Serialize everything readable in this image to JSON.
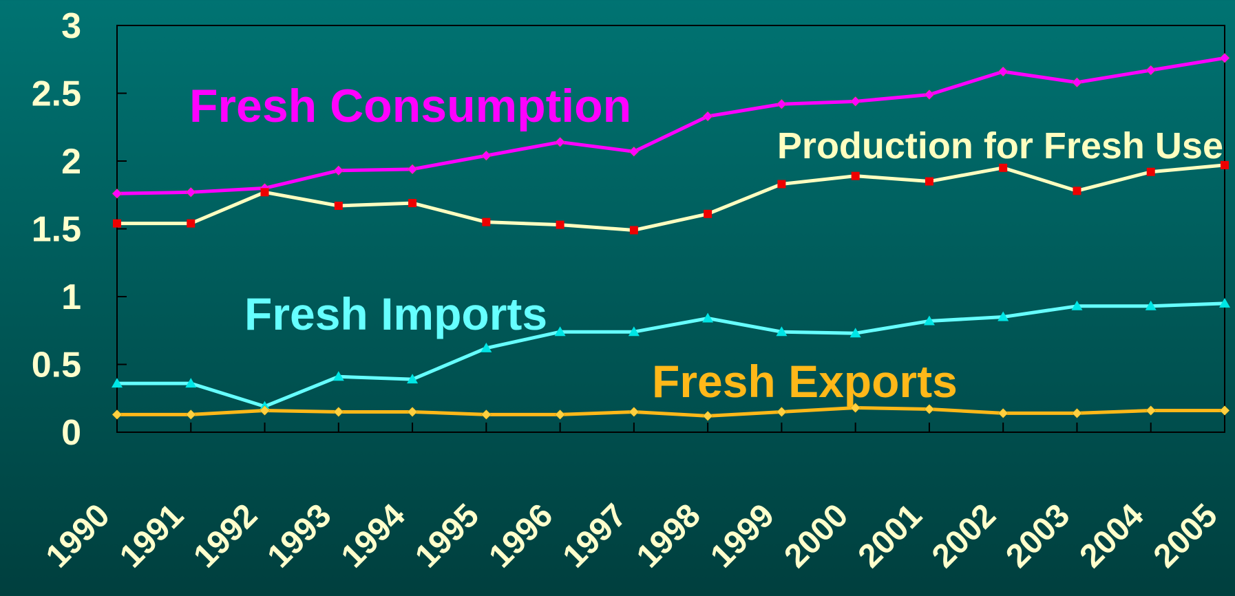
{
  "chart_data": {
    "type": "line",
    "categories": [
      "1990",
      "1991",
      "1992",
      "1993",
      "1994",
      "1995",
      "1996",
      "1997",
      "1998",
      "1999",
      "2000",
      "2001",
      "2002",
      "2003",
      "2004",
      "2005"
    ],
    "series": [
      {
        "name": "Fresh Consumption",
        "color": "#ff00ff",
        "marker": "diamond",
        "marker_color": "#ff00ff",
        "values": [
          1.76,
          1.77,
          1.8,
          1.93,
          1.94,
          2.04,
          2.14,
          2.07,
          2.33,
          2.42,
          2.44,
          2.49,
          2.66,
          2.58,
          2.67,
          2.76
        ]
      },
      {
        "name": "Production for Fresh Use",
        "color": "#ffffc0",
        "marker": "square",
        "marker_color": "#ee0000",
        "values": [
          1.54,
          1.54,
          1.77,
          1.67,
          1.69,
          1.55,
          1.53,
          1.49,
          1.61,
          1.83,
          1.89,
          1.85,
          1.95,
          1.78,
          1.92,
          1.97
        ]
      },
      {
        "name": "Fresh Imports",
        "color": "#66ffff",
        "marker": "triangle",
        "marker_color": "#00e5e5",
        "values": [
          0.36,
          0.36,
          0.19,
          0.41,
          0.39,
          0.62,
          0.74,
          0.74,
          0.84,
          0.74,
          0.73,
          0.82,
          0.85,
          0.93,
          0.93,
          0.95
        ]
      },
      {
        "name": "Fresh Exports",
        "color": "#ffb819",
        "marker": "diamond",
        "marker_color": "#ffd040",
        "values": [
          0.13,
          0.13,
          0.16,
          0.15,
          0.15,
          0.13,
          0.13,
          0.15,
          0.12,
          0.15,
          0.18,
          0.17,
          0.14,
          0.14,
          0.16,
          0.16
        ]
      }
    ],
    "ylim": [
      0,
      3
    ],
    "yticks": [
      0,
      0.5,
      1,
      1.5,
      2,
      2.5,
      3
    ],
    "grid": false
  }
}
